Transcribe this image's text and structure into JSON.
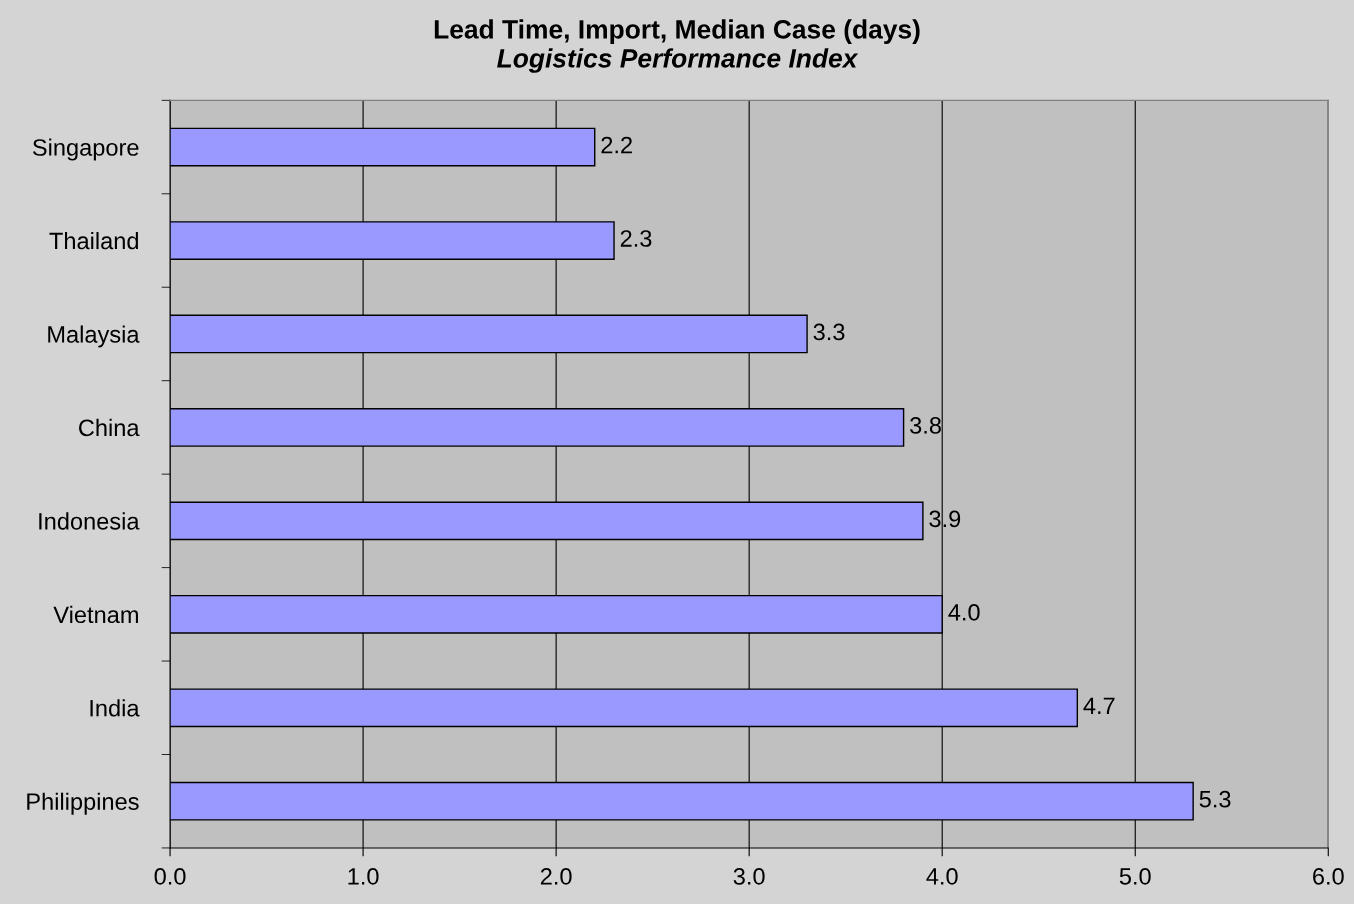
{
  "chart_data": {
    "type": "bar",
    "orientation": "horizontal",
    "title": "Lead Time, Import, Median Case (days)",
    "subtitle": "Logistics Performance Index",
    "categories": [
      "Singapore",
      "Thailand",
      "Malaysia",
      "China",
      "Indonesia",
      "Vietnam",
      "India",
      "Philippines"
    ],
    "values": [
      2.2,
      2.3,
      3.3,
      3.8,
      3.9,
      4.0,
      4.7,
      5.3
    ],
    "value_labels": [
      "2.2",
      "2.3",
      "3.3",
      "3.8",
      "3.9",
      "4.0",
      "4.7",
      "5.3"
    ],
    "color": "#9999ff",
    "xlim": [
      0,
      6
    ],
    "xticks": [
      {
        "value": 0,
        "label": "0.0"
      },
      {
        "value": 1,
        "label": "1.0"
      },
      {
        "value": 2,
        "label": "2.0"
      },
      {
        "value": 3,
        "label": "3.0"
      },
      {
        "value": 4,
        "label": "4.0"
      },
      {
        "value": 5,
        "label": "5.0"
      },
      {
        "value": 6,
        "label": "6.0"
      }
    ],
    "grid": "x"
  }
}
